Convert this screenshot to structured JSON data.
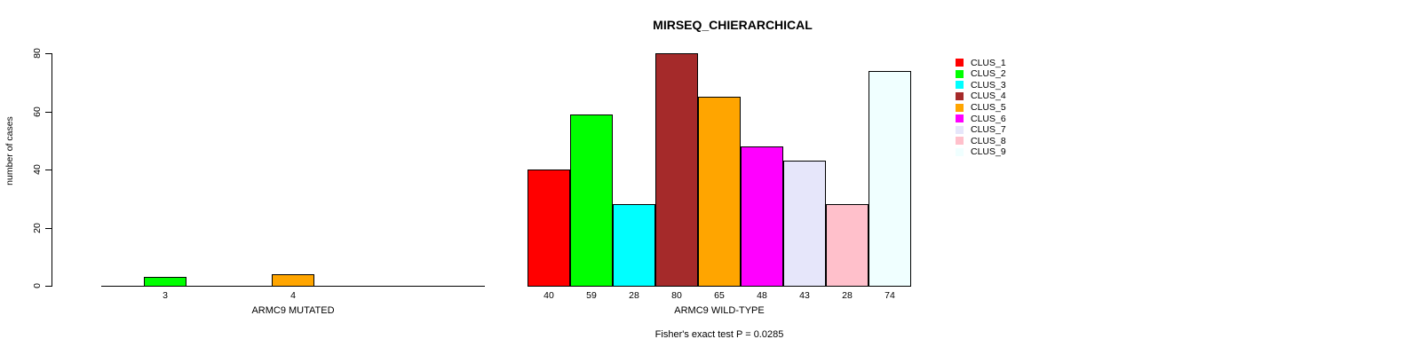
{
  "chart_data": {
    "type": "bar",
    "title": "MIRSEQ_CHIERARCHICAL",
    "ylabel": "number of cases",
    "xlabel": "",
    "ylim": [
      0,
      80
    ],
    "yticks": [
      0,
      20,
      40,
      60,
      80
    ],
    "grid": false,
    "legend_position": "right",
    "categories": [
      "CLUS_1",
      "CLUS_2",
      "CLUS_3",
      "CLUS_4",
      "CLUS_5",
      "CLUS_6",
      "CLUS_7",
      "CLUS_8",
      "CLUS_9"
    ],
    "colors": [
      "#FF0000",
      "#00FF00",
      "#00FFFF",
      "#A52A2A",
      "#FFA500",
      "#FF00FF",
      "#E6E6FA",
      "#FFC0CB",
      "#F0FFFF"
    ],
    "groups": [
      {
        "label": "ARMC9 MUTATED",
        "values": [
          0,
          3,
          0,
          0,
          4,
          0,
          0,
          0,
          0
        ]
      },
      {
        "label": "ARMC9 WILD-TYPE",
        "values": [
          40,
          59,
          28,
          80,
          65,
          48,
          43,
          28,
          74
        ]
      }
    ],
    "annotation": "Fisher's exact test P = 0.0285",
    "axis_color": "#000000",
    "background": "#FFFFFF"
  }
}
